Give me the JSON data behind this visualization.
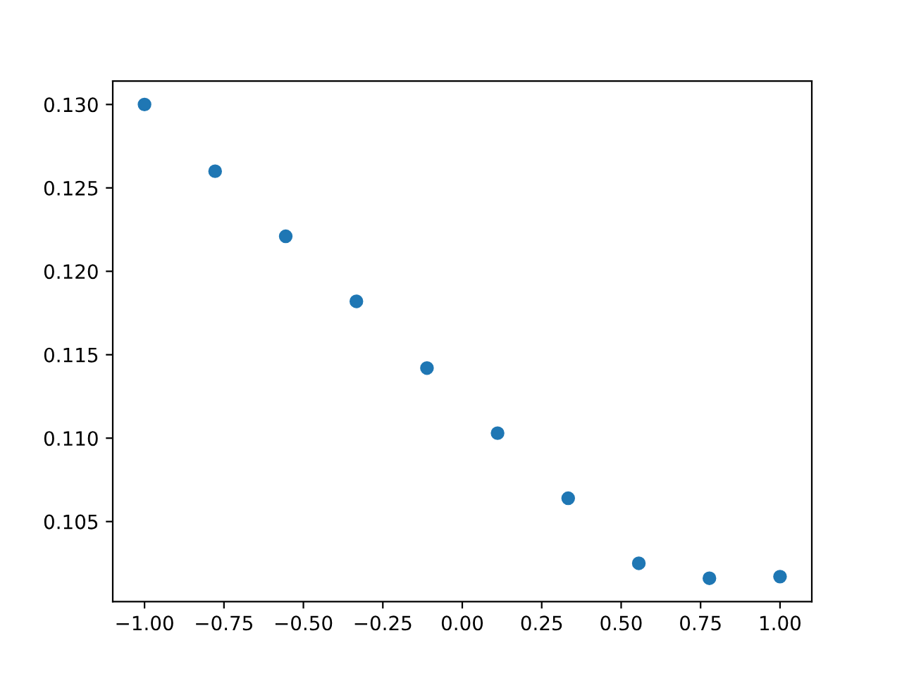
{
  "chart_data": {
    "type": "scatter",
    "x": [
      -1.0,
      -0.7778,
      -0.5556,
      -0.3333,
      -0.1111,
      0.1111,
      0.3333,
      0.5556,
      0.7778,
      1.0
    ],
    "values": [
      0.13,
      0.126,
      0.1221,
      0.1182,
      0.1142,
      0.1103,
      0.1064,
      0.1025,
      0.1016,
      0.1017
    ],
    "color": "#1f77b4",
    "marker": "circle",
    "xlim": [
      -1.1,
      1.1
    ],
    "ylim": [
      0.1002,
      0.1314
    ],
    "xticks": [
      {
        "value": -1.0,
        "label": "−1.00"
      },
      {
        "value": -0.75,
        "label": "−0.75"
      },
      {
        "value": -0.5,
        "label": "−0.50"
      },
      {
        "value": -0.25,
        "label": "−0.25"
      },
      {
        "value": 0.0,
        "label": "0.00"
      },
      {
        "value": 0.25,
        "label": "0.25"
      },
      {
        "value": 0.5,
        "label": "0.50"
      },
      {
        "value": 0.75,
        "label": "0.75"
      },
      {
        "value": 1.0,
        "label": "1.00"
      }
    ],
    "yticks": [
      {
        "value": 0.105,
        "label": "0.105"
      },
      {
        "value": 0.11,
        "label": "0.110"
      },
      {
        "value": 0.115,
        "label": "0.115"
      },
      {
        "value": 0.12,
        "label": "0.120"
      },
      {
        "value": 0.125,
        "label": "0.125"
      },
      {
        "value": 0.13,
        "label": "0.130"
      }
    ],
    "grid": false
  }
}
